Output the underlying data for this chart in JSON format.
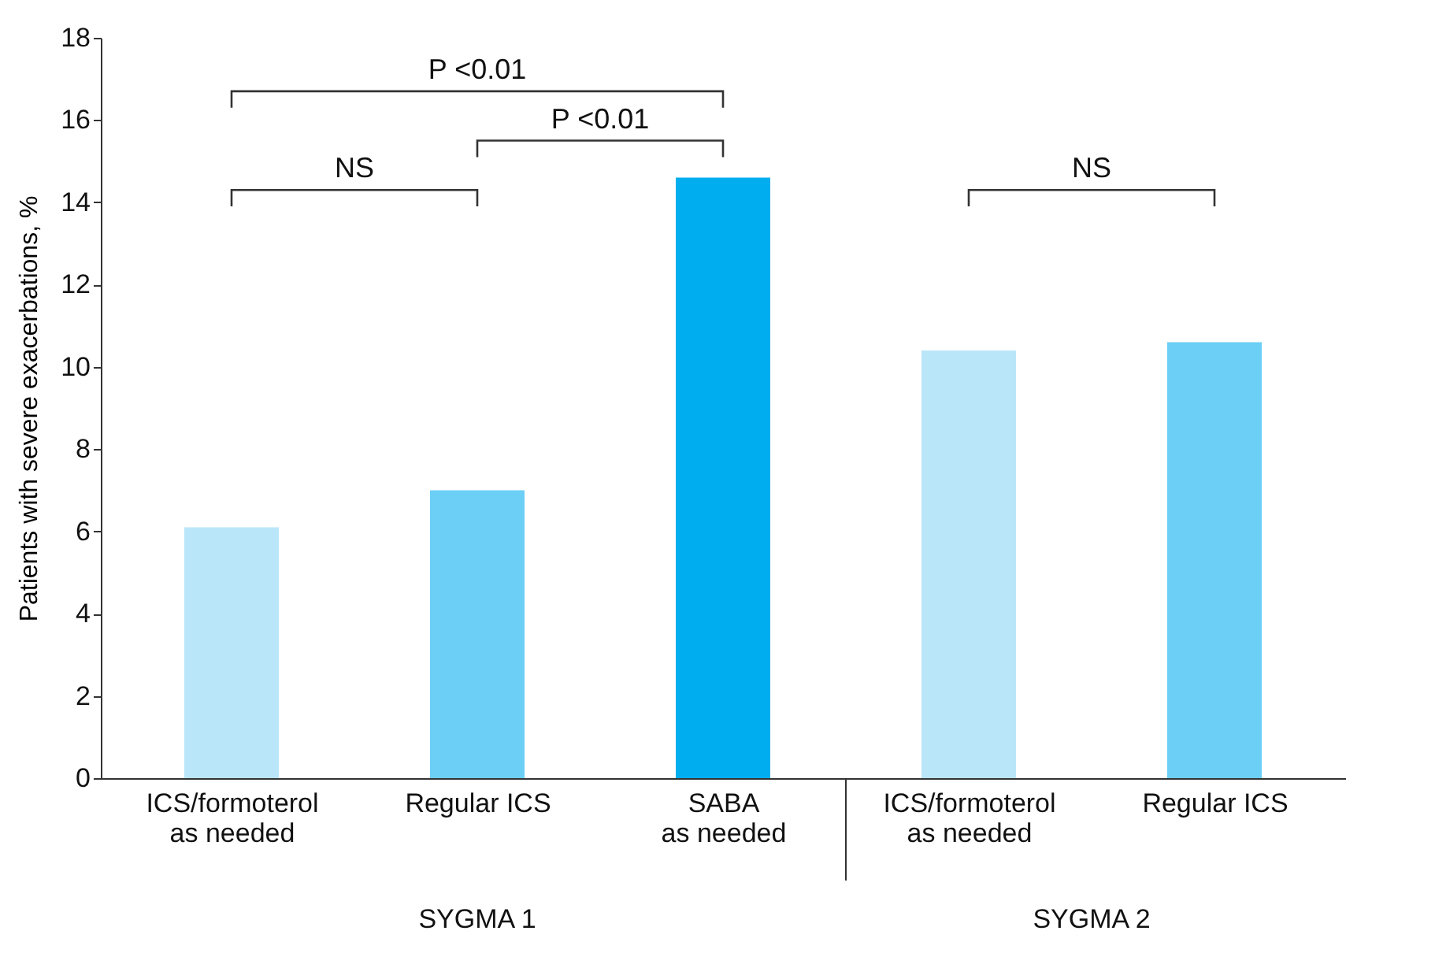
{
  "chart_data": {
    "type": "bar",
    "ylabel": "Patients with severe exacerbations, %",
    "categories": [
      "ICS/formoterol\nas needed",
      "Regular ICS",
      "SABA\nas needed",
      "ICS/formoterol\nas needed",
      "Regular ICS"
    ],
    "values": [
      6.1,
      7.0,
      14.6,
      10.4,
      10.6
    ],
    "colors": [
      "#bae6fa",
      "#6ccff6",
      "#00aeef",
      "#bae6fa",
      "#6ccff6"
    ],
    "ylim": [
      0,
      18
    ],
    "yticks": [
      0,
      2,
      4,
      6,
      8,
      10,
      12,
      14,
      16,
      18
    ],
    "grid": false,
    "annotations": [
      "NS",
      "P <0.01",
      "P <0.01",
      "NS",
      "SYGMA 1",
      "SYGMA 2"
    ]
  }
}
